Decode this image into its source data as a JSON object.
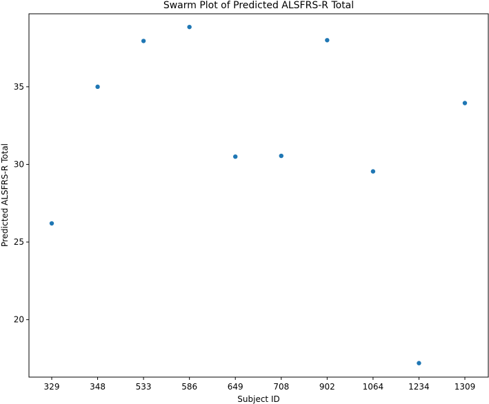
{
  "chart_data": {
    "type": "scatter",
    "title": "Swarm Plot of Predicted ALSFRS-R Total",
    "xlabel": "Subject ID",
    "ylabel": "Predicted ALSFRS-R Total",
    "categories": [
      "329",
      "348",
      "533",
      "586",
      "649",
      "708",
      "902",
      "1064",
      "1234",
      "1309"
    ],
    "values": [
      26.2,
      35.0,
      37.95,
      38.85,
      30.5,
      30.55,
      38.0,
      29.55,
      17.2,
      33.95
    ],
    "yticks": [
      20,
      25,
      30,
      35
    ],
    "ylim": [
      16.3,
      39.7
    ],
    "grid": false,
    "marker_color": "#1f77b4"
  }
}
